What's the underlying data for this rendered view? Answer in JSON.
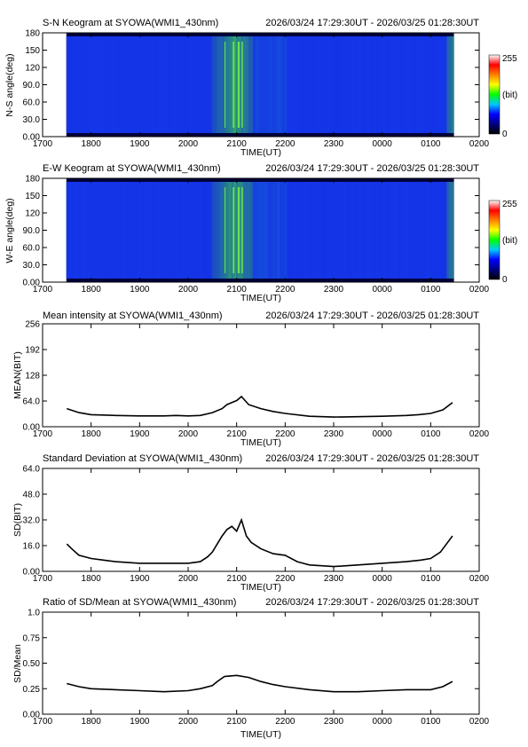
{
  "colors": {
    "keo_dark": "#00003c",
    "keo_blue": "#1432e6",
    "keo_bright": "#3cdc28",
    "line": "#000000"
  },
  "colorbar": {
    "max_label": "255",
    "unit_label": "(bit)",
    "min_label": "0",
    "stops": [
      "#000000",
      "#000080",
      "#0000ff",
      "#00c8ff",
      "#00ff00",
      "#ffff00",
      "#ff8000",
      "#ff0000",
      "#ffffff"
    ]
  },
  "chart_data": [
    {
      "id": "sn",
      "type": "heatmap",
      "title": "S-N Keogram at SYOWA(WMI1_430nm)",
      "time_range": "2026/03/24 17:29:30UT - 2026/03/25 01:28:30UT",
      "xlabel": "TIME(UT)",
      "ylabel": "N-S angle(deg)",
      "xticks": [
        "1700",
        "1800",
        "1900",
        "2000",
        "2100",
        "2200",
        "2300",
        "0000",
        "0100",
        "0200"
      ],
      "yticks": [
        "0.00",
        "30.0",
        "60.0",
        "90.0",
        "120",
        "150",
        "180"
      ],
      "xlim": [
        0,
        9
      ],
      "ylim": [
        0,
        180
      ],
      "data_xrange": [
        0.49,
        8.48
      ],
      "zlim": [
        0,
        255
      ]
    },
    {
      "id": "ew",
      "type": "heatmap",
      "title": "E-W Keogram at SYOWA(WMI1_430nm)",
      "time_range": "2026/03/24 17:29:30UT - 2026/03/25 01:28:30UT",
      "xlabel": "TIME(UT)",
      "ylabel": "W-E angle(deg)",
      "xticks": [
        "1700",
        "1800",
        "1900",
        "2000",
        "2100",
        "2200",
        "2300",
        "0000",
        "0100",
        "0200"
      ],
      "yticks": [
        "0.00",
        "30.0",
        "60.0",
        "90.0",
        "120",
        "150",
        "180"
      ],
      "xlim": [
        0,
        9
      ],
      "ylim": [
        0,
        180
      ],
      "data_xrange": [
        0.49,
        8.48
      ],
      "zlim": [
        0,
        255
      ]
    },
    {
      "id": "mean",
      "type": "line",
      "title": "Mean intensity at SYOWA(WMI1_430nm)",
      "time_range": "2026/03/24 17:29:30UT - 2026/03/25 01:28:30UT",
      "xlabel": "TIME(UT)",
      "ylabel": "MEAN(BIT)",
      "xticks": [
        "1700",
        "1800",
        "1900",
        "2000",
        "2100",
        "2200",
        "2300",
        "0000",
        "0100",
        "0200"
      ],
      "yticks": [
        "0.00",
        "64.0",
        "128",
        "192",
        "256"
      ],
      "xlim": [
        0,
        9
      ],
      "ylim": [
        0,
        256
      ],
      "x": [
        0.5,
        0.75,
        1.0,
        1.5,
        2.0,
        2.25,
        2.5,
        2.75,
        3.0,
        3.25,
        3.5,
        3.7,
        3.8,
        3.9,
        4.0,
        4.1,
        4.25,
        4.5,
        4.75,
        5.0,
        5.5,
        6.0,
        6.5,
        7.0,
        7.5,
        7.75,
        8.0,
        8.25,
        8.45
      ],
      "y": [
        45,
        35,
        30,
        28,
        27,
        27,
        27,
        28,
        27,
        28,
        35,
        45,
        55,
        60,
        65,
        75,
        55,
        45,
        38,
        33,
        26,
        24,
        25,
        26,
        28,
        30,
        33,
        42,
        60
      ]
    },
    {
      "id": "sd",
      "type": "line",
      "title": "Standard Deviation at SYOWA(WMI1_430nm)",
      "time_range": "2026/03/24 17:29:30UT - 2026/03/25 01:28:30UT",
      "xlabel": "TIME(UT)",
      "ylabel": "SD(BIT)",
      "xticks": [
        "1700",
        "1800",
        "1900",
        "2000",
        "2100",
        "2200",
        "2300",
        "0000",
        "0100",
        "0200"
      ],
      "yticks": [
        "0.00",
        "16.0",
        "32.0",
        "48.0",
        "64.0"
      ],
      "xlim": [
        0,
        9
      ],
      "ylim": [
        0,
        64
      ],
      "x": [
        0.5,
        0.6,
        0.75,
        1.0,
        1.25,
        1.5,
        2.0,
        2.5,
        3.0,
        3.25,
        3.4,
        3.5,
        3.6,
        3.7,
        3.8,
        3.9,
        4.0,
        4.1,
        4.2,
        4.3,
        4.5,
        4.75,
        5.0,
        5.25,
        5.5,
        6.0,
        6.5,
        7.0,
        7.5,
        7.8,
        8.0,
        8.2,
        8.45
      ],
      "y": [
        17,
        14,
        10,
        8,
        7,
        6,
        5,
        5,
        5,
        6,
        9,
        12,
        17,
        22,
        26,
        28,
        25,
        32,
        22,
        18,
        14,
        11,
        10,
        6,
        4,
        3,
        4,
        5,
        6,
        7,
        8,
        12,
        22
      ]
    },
    {
      "id": "ratio",
      "type": "line",
      "title": "Ratio of SD/Mean at SYOWA(WMI1_430nm)",
      "time_range": "2026/03/24 17:29:30UT - 2026/03/25 01:28:30UT",
      "xlabel": "TIME(UT)",
      "ylabel": "SD/Mean",
      "xticks": [
        "1700",
        "1800",
        "1900",
        "2000",
        "2100",
        "2200",
        "2300",
        "0000",
        "0100",
        "0200"
      ],
      "yticks": [
        "0.00",
        "0.25",
        "0.50",
        "0.75",
        "1.0"
      ],
      "xlim": [
        0,
        9
      ],
      "ylim": [
        0,
        1.0
      ],
      "x": [
        0.5,
        0.75,
        1.0,
        1.5,
        2.0,
        2.5,
        3.0,
        3.25,
        3.5,
        3.6,
        3.75,
        4.0,
        4.25,
        4.5,
        4.75,
        5.0,
        5.5,
        6.0,
        6.5,
        7.0,
        7.5,
        8.0,
        8.25,
        8.45
      ],
      "y": [
        0.3,
        0.27,
        0.25,
        0.24,
        0.23,
        0.22,
        0.23,
        0.25,
        0.28,
        0.32,
        0.37,
        0.38,
        0.36,
        0.32,
        0.29,
        0.27,
        0.24,
        0.22,
        0.22,
        0.23,
        0.24,
        0.24,
        0.27,
        0.32
      ]
    }
  ]
}
